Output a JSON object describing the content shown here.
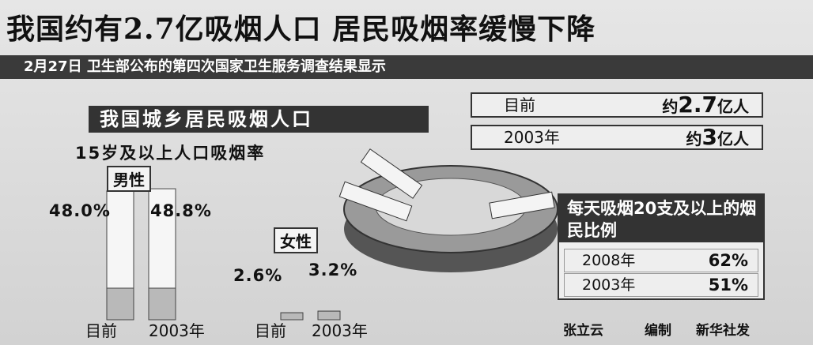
{
  "title": "我国约有2.7亿吸烟人口  居民吸烟率缓慢下降",
  "subtitle": "2月27日 卫生部公布的第四次国家卫生服务调查结果显示",
  "population": {
    "title": "我国城乡居民吸烟人口",
    "rows": [
      {
        "label": "目前",
        "prefix": "约",
        "number": "2.7",
        "unit": "亿人"
      },
      {
        "label": "2003年",
        "prefix": "约",
        "number": "3",
        "unit": "亿人"
      }
    ]
  },
  "chart_data": {
    "type": "cigarette-bar",
    "title": "15岁及以上人口吸烟率",
    "groups": [
      {
        "name": "男性",
        "categories": [
          "目前",
          "2003年"
        ],
        "values": [
          48.0,
          48.8
        ],
        "value_labels": [
          "48.0%",
          "48.8%"
        ]
      },
      {
        "name": "女性",
        "categories": [
          "目前",
          "2003年"
        ],
        "values": [
          2.6,
          3.2
        ],
        "value_labels": [
          "2.6%",
          "3.2%"
        ]
      }
    ]
  },
  "daily": {
    "title": "每天吸烟20支及以上的烟民比例",
    "rows": [
      {
        "label": "2008年",
        "value": "62%"
      },
      {
        "label": "2003年",
        "value": "51%"
      }
    ]
  },
  "footer": {
    "author": "张立云",
    "role": "编制",
    "agency": "新华社发"
  }
}
